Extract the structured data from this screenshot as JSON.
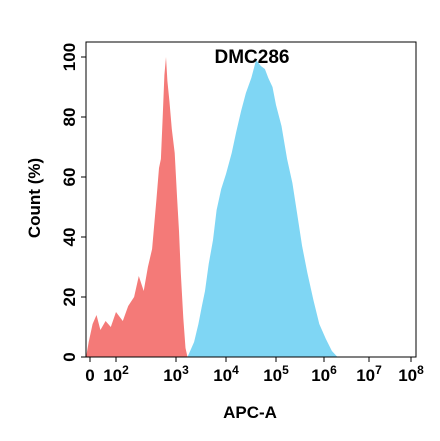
{
  "chart_data": {
    "type": "area",
    "title": "DMC286",
    "xlabel": "APC-A",
    "ylabel": "Count  (%)",
    "x_scale": "biexponential",
    "ylim": [
      0,
      105
    ],
    "x_ticks": [
      {
        "value": 0,
        "base": "0",
        "exp": ""
      },
      {
        "value": 100,
        "base": "10",
        "exp": "2"
      },
      {
        "value": 1000,
        "base": "10",
        "exp": "3"
      },
      {
        "value": 10000,
        "base": "10",
        "exp": "4"
      },
      {
        "value": 100000,
        "base": "10",
        "exp": "5"
      },
      {
        "value": 1000000,
        "base": "10",
        "exp": "6"
      },
      {
        "value": 10000000,
        "base": "10",
        "exp": "7"
      },
      {
        "value": 100000000,
        "base": "10",
        "exp": "8"
      }
    ],
    "y_ticks": [
      "0",
      "20",
      "40",
      "60",
      "80",
      "100"
    ],
    "grid": false,
    "legend": "none",
    "series": [
      {
        "color": "#f47a78",
        "points": [
          [
            -15,
            0
          ],
          [
            -5,
            5
          ],
          [
            10,
            11
          ],
          [
            25,
            14
          ],
          [
            40,
            9
          ],
          [
            60,
            12
          ],
          [
            80,
            10
          ],
          [
            100,
            15
          ],
          [
            130,
            12
          ],
          [
            160,
            17
          ],
          [
            200,
            20
          ],
          [
            240,
            27
          ],
          [
            290,
            22
          ],
          [
            340,
            30
          ],
          [
            400,
            36
          ],
          [
            470,
            52
          ],
          [
            520,
            63
          ],
          [
            560,
            66
          ],
          [
            600,
            80
          ],
          [
            640,
            94
          ],
          [
            680,
            100
          ],
          [
            720,
            92
          ],
          [
            780,
            85
          ],
          [
            850,
            76
          ],
          [
            950,
            68
          ],
          [
            1050,
            53
          ],
          [
            1150,
            42
          ],
          [
            1250,
            28
          ],
          [
            1400,
            13
          ],
          [
            1550,
            3
          ],
          [
            1700,
            0
          ]
        ]
      },
      {
        "color": "#7fd6f4",
        "points": [
          [
            1700,
            0
          ],
          [
            2300,
            5
          ],
          [
            2800,
            11
          ],
          [
            3300,
            17
          ],
          [
            3800,
            22
          ],
          [
            4500,
            31
          ],
          [
            5500,
            39
          ],
          [
            6500,
            49
          ],
          [
            8000,
            56
          ],
          [
            10000,
            61
          ],
          [
            13000,
            68
          ],
          [
            16000,
            75
          ],
          [
            20000,
            82
          ],
          [
            25000,
            88
          ],
          [
            32000,
            93
          ],
          [
            40000,
            99
          ],
          [
            50000,
            97
          ],
          [
            60000,
            96
          ],
          [
            70000,
            93
          ],
          [
            85000,
            90
          ],
          [
            100000,
            84
          ],
          [
            130000,
            77
          ],
          [
            170000,
            66
          ],
          [
            220000,
            58
          ],
          [
            280000,
            47
          ],
          [
            350000,
            37
          ],
          [
            450000,
            28
          ],
          [
            600000,
            19
          ],
          [
            800000,
            11
          ],
          [
            1100000,
            6
          ],
          [
            1500000,
            2
          ],
          [
            2000000,
            0
          ]
        ]
      }
    ]
  }
}
